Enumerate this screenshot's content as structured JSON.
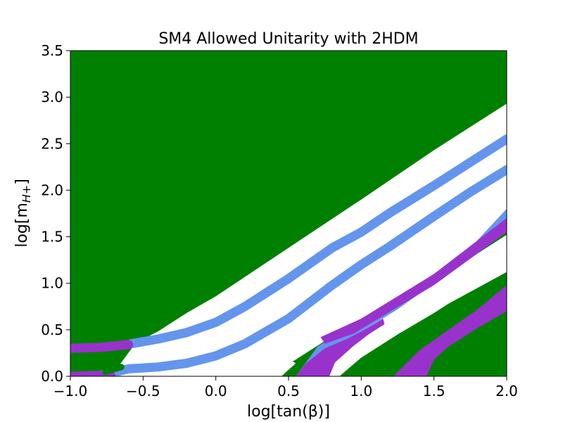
{
  "chart_data": {
    "type": "area",
    "title": "SM4 Allowed Unitarity with 2HDM",
    "xlabel": "log[tan(β)]",
    "ylabel": "log[m_{H+}]",
    "xlim": [
      -1.0,
      2.0
    ],
    "ylim": [
      0.0,
      3.5
    ],
    "xticks": [
      "−1.0",
      "−0.5",
      "0.0",
      "0.5",
      "1.0",
      "1.5",
      "2.0"
    ],
    "yticks": [
      "0.0",
      "0.5",
      "1.0",
      "1.5",
      "2.0",
      "2.5",
      "3.0",
      "3.5"
    ],
    "colors": {
      "green": "#008000",
      "blue": "#6495ed",
      "purple": "#9932cc",
      "white": "#ffffff"
    },
    "regions": [
      {
        "color": "green",
        "role": "background",
        "polygon": [
          [
            -1.0,
            0.0
          ],
          [
            2.0,
            0.0
          ],
          [
            2.0,
            3.5
          ],
          [
            -1.0,
            3.5
          ]
        ]
      },
      {
        "color": "white",
        "role": "main-band",
        "polygon": [
          [
            -0.72,
            0.0
          ],
          [
            -0.55,
            0.36
          ],
          [
            -0.4,
            0.48
          ],
          [
            -0.2,
            0.68
          ],
          [
            0.0,
            0.86
          ],
          [
            0.5,
            1.38
          ],
          [
            1.0,
            1.9
          ],
          [
            1.5,
            2.43
          ],
          [
            2.0,
            2.93
          ],
          [
            2.0,
            1.55
          ],
          [
            1.5,
            1.05
          ],
          [
            1.25,
            0.82
          ],
          [
            1.0,
            0.6
          ],
          [
            0.75,
            0.38
          ],
          [
            0.55,
            0.18
          ],
          [
            0.4,
            0.04
          ],
          [
            0.38,
            0.0
          ]
        ]
      },
      {
        "color": "white",
        "role": "lower-band",
        "polygon": [
          [
            0.55,
            0.0
          ],
          [
            0.75,
            0.28
          ],
          [
            1.0,
            0.55
          ],
          [
            1.25,
            0.78
          ],
          [
            1.5,
            1.02
          ],
          [
            2.0,
            1.52
          ],
          [
            2.0,
            1.12
          ],
          [
            1.8,
            0.95
          ],
          [
            1.6,
            0.78
          ],
          [
            1.5,
            0.68
          ],
          [
            1.25,
            0.45
          ],
          [
            1.0,
            0.2
          ],
          [
            0.85,
            0.0
          ]
        ]
      },
      {
        "color": "white",
        "role": "lower-left-sliver",
        "polygon": [
          [
            0.3,
            0.0
          ],
          [
            0.42,
            0.1
          ],
          [
            0.5,
            0.18
          ],
          [
            0.55,
            0.14
          ],
          [
            0.45,
            0.0
          ]
        ]
      },
      {
        "color": "white",
        "role": "bottom-left-sliver",
        "polygon": [
          [
            -0.82,
            0.0
          ],
          [
            -0.65,
            0.1
          ],
          [
            -0.62,
            0.0
          ]
        ]
      },
      {
        "color": "blue",
        "role": "lower-right-band",
        "polygon": [
          [
            0.55,
            0.0
          ],
          [
            0.7,
            0.32
          ],
          [
            1.0,
            0.62
          ],
          [
            1.25,
            0.85
          ],
          [
            1.5,
            1.1
          ],
          [
            1.75,
            1.38
          ],
          [
            2.0,
            1.8
          ],
          [
            2.0,
            1.62
          ],
          [
            1.75,
            1.28
          ],
          [
            1.5,
            1.0
          ],
          [
            1.25,
            0.72
          ],
          [
            1.0,
            0.48
          ],
          [
            0.78,
            0.25
          ],
          [
            0.62,
            0.0
          ]
        ]
      },
      {
        "color": "purple",
        "role": "lower-right-band",
        "polygon": [
          [
            0.72,
            0.42
          ],
          [
            1.0,
            0.62
          ],
          [
            1.5,
            1.1
          ],
          [
            2.0,
            1.7
          ],
          [
            2.0,
            1.55
          ],
          [
            1.5,
            0.98
          ],
          [
            1.15,
            0.65
          ],
          [
            0.95,
            0.46
          ],
          [
            0.75,
            0.35
          ]
        ]
      },
      {
        "color": "purple",
        "role": "bottom-left-wedge",
        "polygon": [
          [
            0.55,
            0.0
          ],
          [
            0.62,
            0.14
          ],
          [
            0.75,
            0.3
          ],
          [
            0.9,
            0.4
          ],
          [
            1.0,
            0.48
          ],
          [
            1.15,
            0.62
          ],
          [
            1.16,
            0.56
          ],
          [
            1.05,
            0.45
          ],
          [
            0.95,
            0.33
          ],
          [
            0.82,
            0.15
          ],
          [
            0.78,
            0.0
          ]
        ]
      },
      {
        "color": "purple",
        "role": "bottom-right-wedge",
        "polygon": [
          [
            1.22,
            0.0
          ],
          [
            1.4,
            0.28
          ],
          [
            1.6,
            0.5
          ],
          [
            1.8,
            0.72
          ],
          [
            2.0,
            0.98
          ],
          [
            2.0,
            0.7
          ],
          [
            1.8,
            0.52
          ],
          [
            1.6,
            0.32
          ],
          [
            1.5,
            0.18
          ],
          [
            1.45,
            0.0
          ]
        ]
      }
    ],
    "curves": [
      {
        "color": "blue",
        "role": "upper-curve",
        "points": [
          [
            -0.58,
            0.35
          ],
          [
            -0.4,
            0.4
          ],
          [
            -0.2,
            0.47
          ],
          [
            0.0,
            0.58
          ],
          [
            0.2,
            0.75
          ],
          [
            0.5,
            1.05
          ],
          [
            0.8,
            1.38
          ],
          [
            1.0,
            1.55
          ],
          [
            1.2,
            1.76
          ],
          [
            1.5,
            2.05
          ],
          [
            1.75,
            2.3
          ],
          [
            2.0,
            2.55
          ]
        ]
      },
      {
        "color": "blue",
        "role": "middle-curve",
        "points": [
          [
            -0.82,
            0.0
          ],
          [
            -0.6,
            0.08
          ],
          [
            -0.4,
            0.1
          ],
          [
            -0.2,
            0.14
          ],
          [
            0.0,
            0.22
          ],
          [
            0.2,
            0.35
          ],
          [
            0.5,
            0.62
          ],
          [
            0.8,
            0.98
          ],
          [
            1.0,
            1.2
          ],
          [
            1.2,
            1.4
          ],
          [
            1.5,
            1.72
          ],
          [
            1.75,
            1.98
          ],
          [
            2.0,
            2.22
          ]
        ]
      },
      {
        "color": "purple",
        "role": "left-curve-top",
        "points": [
          [
            -1.0,
            0.3
          ],
          [
            -0.8,
            0.31
          ],
          [
            -0.6,
            0.34
          ]
        ]
      },
      {
        "color": "purple",
        "role": "left-curve-bottom",
        "points": [
          [
            -1.0,
            0.0
          ],
          [
            -0.8,
            0.01
          ],
          [
            -0.72,
            0.0
          ]
        ]
      },
      {
        "color": "green",
        "role": "small-stub",
        "points": [
          [
            -0.76,
            0.05
          ],
          [
            -0.65,
            0.1
          ]
        ]
      }
    ]
  }
}
